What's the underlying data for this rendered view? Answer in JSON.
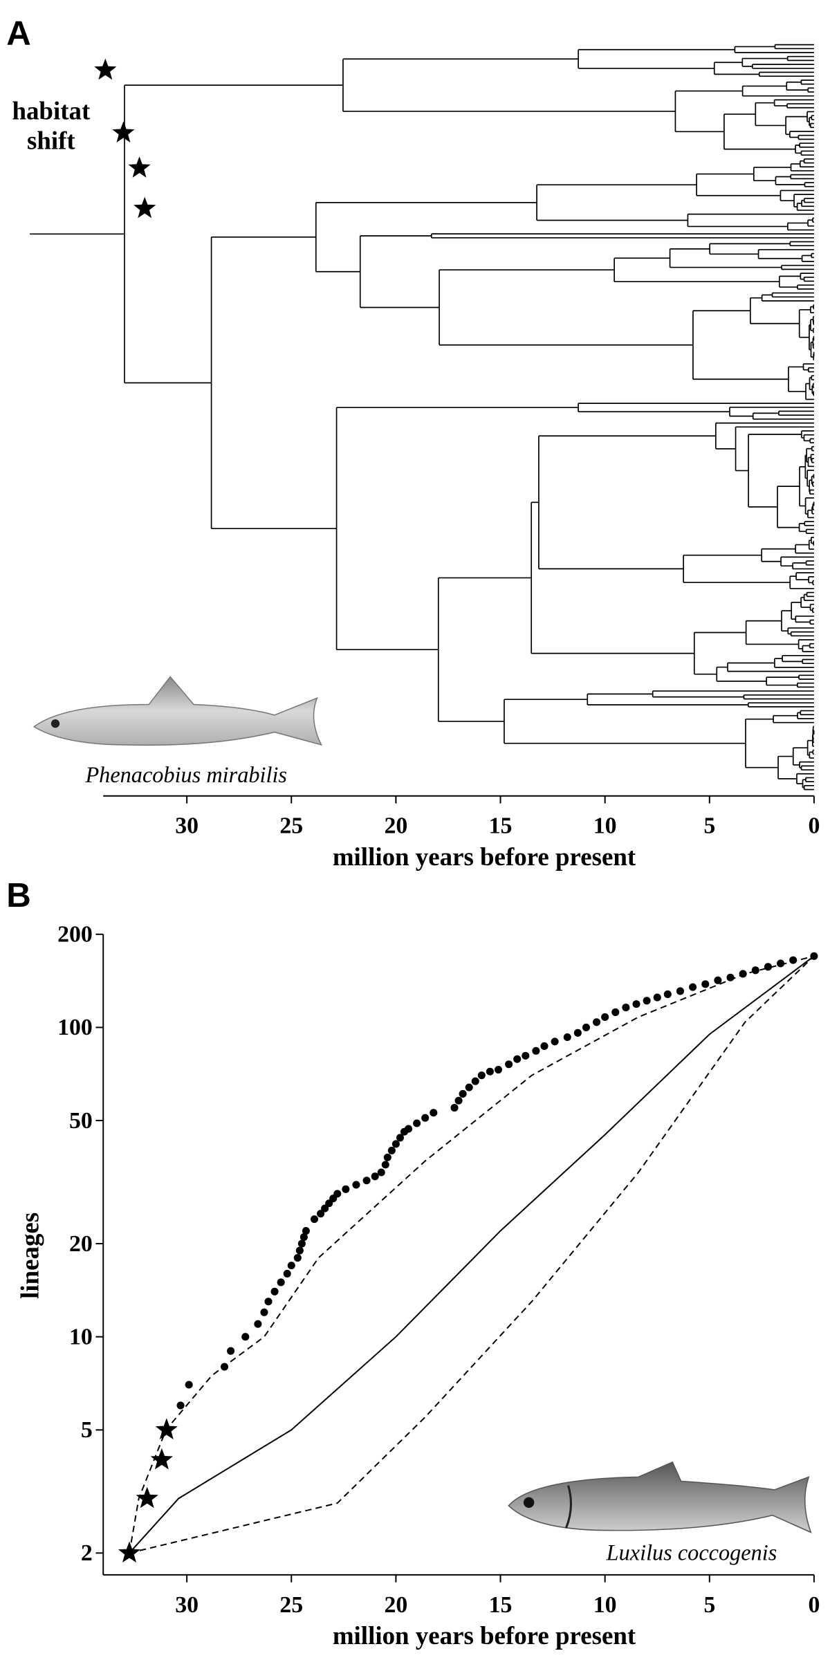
{
  "chart_data": [
    {
      "type": "tree",
      "panel_label": "A",
      "annotation": "habitat shift",
      "species": "Phenacobius mirabilis",
      "xlabel": "million years before present",
      "xlim": [
        34,
        0
      ],
      "xticks": [
        30,
        25,
        20,
        15,
        10,
        5,
        0
      ]
    },
    {
      "type": "scatter",
      "panel_label": "B",
      "species": "Luxilus coccogenis",
      "xlabel": "million years before present",
      "ylabel": "lineages",
      "xlim": [
        34,
        0
      ],
      "xticks": [
        30,
        25,
        20,
        15,
        10,
        5,
        0
      ],
      "ylim": [
        1.7,
        200
      ],
      "yscale": "log",
      "yticks": [
        2,
        5,
        10,
        20,
        50,
        100,
        200
      ],
      "series": [
        {
          "style": "dots",
          "color": "#000000",
          "x": [
            30.3,
            29.9,
            28.2,
            27.9,
            27.2,
            26.6,
            26.3,
            26.1,
            25.8,
            25.5,
            25.2,
            25,
            24.7,
            24.6,
            24.5,
            24.4,
            24.3,
            23.9,
            23.6,
            23.4,
            23.2,
            23,
            22.8,
            22.4,
            21.9,
            21.4,
            21,
            20.7,
            20.5,
            20.4,
            20.2,
            20,
            19.8,
            19.6,
            19.4,
            19,
            18.6,
            18.2,
            17.2,
            17,
            16.8,
            16.5,
            16.2,
            15.9,
            15.5,
            15.1,
            14.6,
            14.2,
            13.8,
            13.3,
            12.9,
            12.4,
            11.8,
            11.3,
            10.9,
            10.4,
            10,
            9.5,
            9,
            8.5,
            8,
            7.5,
            7,
            6.4,
            5.8,
            5.2,
            4.6,
            4,
            3.4,
            2.8,
            2.2,
            1.6,
            1,
            0
          ],
          "values": [
            6,
            7,
            8,
            9,
            10,
            11,
            12,
            13,
            14,
            15,
            16,
            17,
            18,
            19,
            20,
            21,
            22,
            24,
            25,
            26,
            27,
            28,
            29,
            30,
            31,
            32,
            33,
            34,
            36,
            38,
            40,
            42,
            44,
            46,
            47,
            49,
            51,
            53,
            55,
            58,
            61,
            64,
            67,
            70,
            72,
            73,
            76,
            79,
            81,
            84,
            87,
            90,
            93,
            96,
            100,
            104,
            108,
            112,
            116,
            119,
            122,
            125,
            128,
            131,
            135,
            138,
            142,
            145,
            149,
            153,
            157,
            161,
            165,
            170
          ]
        },
        {
          "style": "stars",
          "color": "#000000",
          "x": [
            32.75,
            31.9,
            31.2,
            30.97
          ],
          "values": [
            2,
            3,
            4,
            5
          ]
        },
        {
          "style": "solid",
          "color": "#000000",
          "x": [
            32.75,
            30.4,
            25,
            20,
            15,
            10,
            5,
            0
          ],
          "values": [
            2,
            3,
            5,
            10,
            22,
            45,
            95,
            170
          ]
        },
        {
          "style": "dashed",
          "color": "#000000",
          "x": [
            32.75,
            32.3,
            31,
            28.8,
            26.3,
            23.7,
            18.6,
            13.5,
            8.4,
            3.3,
            0
          ],
          "values": [
            2,
            3,
            5,
            7.5,
            10,
            18,
            37,
            70,
            108,
            149,
            170
          ]
        },
        {
          "style": "dashed",
          "color": "#000000",
          "x": [
            32.75,
            22.8,
            18.6,
            13.5,
            8.4,
            3.3,
            0
          ],
          "values": [
            2,
            2.9,
            5.5,
            13,
            34,
            104,
            170
          ]
        }
      ]
    }
  ]
}
